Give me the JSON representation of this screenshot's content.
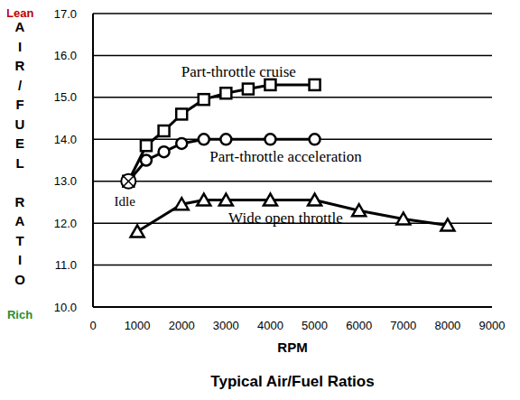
{
  "chart_data": {
    "type": "line",
    "title": "Typical Air/Fuel Ratios",
    "xlabel": "RPM",
    "ylabel": "AIR/FUEL RATIO",
    "ylabel_ends": [
      "Lean",
      "Rich"
    ],
    "xlim": [
      0,
      9000
    ],
    "xticks": [
      0,
      1000,
      2000,
      3000,
      4000,
      5000,
      6000,
      7000,
      8000,
      9000
    ],
    "ylim": [
      10,
      17
    ],
    "yticks": [
      {
        "value": 10,
        "label": "10.0"
      },
      {
        "value": 11,
        "label": "11.0"
      },
      {
        "value": 12,
        "label": "12.0"
      },
      {
        "value": 13,
        "label": "13.0"
      },
      {
        "value": 14,
        "label": "14.0"
      },
      {
        "value": 15,
        "label": "15.0"
      },
      {
        "value": 16,
        "label": "16.0"
      },
      {
        "value": 17,
        "label": "17.0"
      }
    ],
    "grid": true,
    "series": [
      {
        "name": "Part-throttle cruise",
        "color": "#000000",
        "marker": "square",
        "line_style": "solid",
        "x": [
          800,
          1200,
          1600,
          2000,
          2500,
          3000,
          3500,
          4000,
          5000
        ],
        "values": [
          13.0,
          13.85,
          14.2,
          14.6,
          14.95,
          15.1,
          15.2,
          15.3,
          15.3
        ]
      },
      {
        "name": "Part-throttle acceleration",
        "color": "#000000",
        "marker": "circle",
        "line_style": "solid",
        "x": [
          800,
          1200,
          1600,
          2000,
          2500,
          3000,
          4000,
          5000
        ],
        "values": [
          13.0,
          13.5,
          13.7,
          13.9,
          14.0,
          14.0,
          14.0,
          14.0
        ]
      },
      {
        "name": "Wide open throttle",
        "color": "#000000",
        "marker": "triangle",
        "line_style": "solid",
        "x": [
          1000,
          2000,
          2500,
          3000,
          4000,
          5000,
          6000,
          7000,
          8000
        ],
        "values": [
          11.8,
          12.45,
          12.55,
          12.55,
          12.55,
          12.55,
          12.3,
          12.1,
          11.95
        ]
      },
      {
        "name": "Idle",
        "color": "#000000",
        "marker": "circle-x",
        "line_style": "none",
        "x": [
          800
        ],
        "values": [
          13.0
        ]
      }
    ]
  }
}
